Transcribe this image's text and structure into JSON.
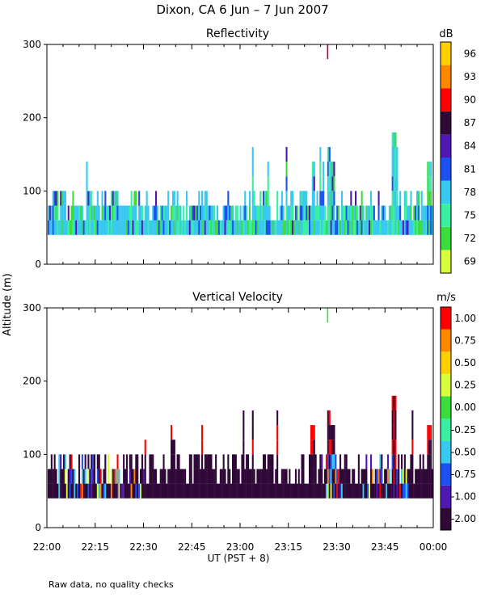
{
  "title": "Dixon, CA   6 Jun –  7 Jun 2007",
  "ylabel": "Altitude (m)",
  "xlabel": "UT  (PST + 8)",
  "footnote": "Raw data, no quality checks",
  "x_ticks": [
    "22:00",
    "22:15",
    "22:30",
    "22:45",
    "23:00",
    "23:15",
    "23:30",
    "23:45",
    "00:00"
  ],
  "chart_data": [
    {
      "type": "heatmap",
      "title": "Reflectivity",
      "ylabel": "Altitude (m)",
      "xlabel": "UT  (PST + 8)",
      "x_range_min": [
        0,
        120
      ],
      "ylim": [
        0,
        300
      ],
      "y_ticks": [
        0,
        100,
        200,
        300
      ],
      "colorbar": {
        "unit": "dB",
        "labels": [
          "69",
          "72",
          "75",
          "78",
          "81",
          "84",
          "87",
          "90",
          "93",
          "96"
        ],
        "levels": [
          69,
          72,
          75,
          78,
          81,
          84,
          87,
          90,
          93,
          96
        ],
        "colors": [
          "#d8ff3c",
          "#3cdc3c",
          "#38f0a0",
          "#38c8f0",
          "#1c50f0",
          "#5018b0",
          "#300838",
          "#ff0000",
          "#ff8800",
          "#ffd000"
        ]
      },
      "echo_layer_m": [
        40,
        100
      ],
      "max_echo_m": 180,
      "point_echo": {
        "time": "23:27",
        "altitude_m": [
          280,
          300
        ]
      }
    },
    {
      "type": "heatmap",
      "title": "Vertical Velocity",
      "ylabel": "Altitude (m)",
      "xlabel": "UT  (PST + 8)",
      "x_range_min": [
        0,
        120
      ],
      "ylim": [
        0,
        300
      ],
      "y_ticks": [
        0,
        100,
        200,
        300
      ],
      "colorbar": {
        "unit": "m/s",
        "labels": [
          "-2.00",
          "-1.00",
          "-0.75",
          "-0.50",
          "-0.25",
          "0.00",
          "0.25",
          "0.50",
          "0.75",
          "1.00"
        ],
        "levels": [
          -2.0,
          -1.0,
          -0.75,
          -0.5,
          -0.25,
          0.0,
          0.25,
          0.5,
          0.75,
          1.0
        ],
        "colors": [
          "#300838",
          "#5018b0",
          "#1c50f0",
          "#38c8f0",
          "#38f0a0",
          "#3cdc3c",
          "#d8ff3c",
          "#ffd000",
          "#ff8800",
          "#ff0000"
        ]
      },
      "echo_layer_m": [
        40,
        100
      ],
      "max_echo_m": 180,
      "point_echo": {
        "time": "23:27",
        "altitude_m": [
          280,
          300
        ]
      }
    }
  ]
}
